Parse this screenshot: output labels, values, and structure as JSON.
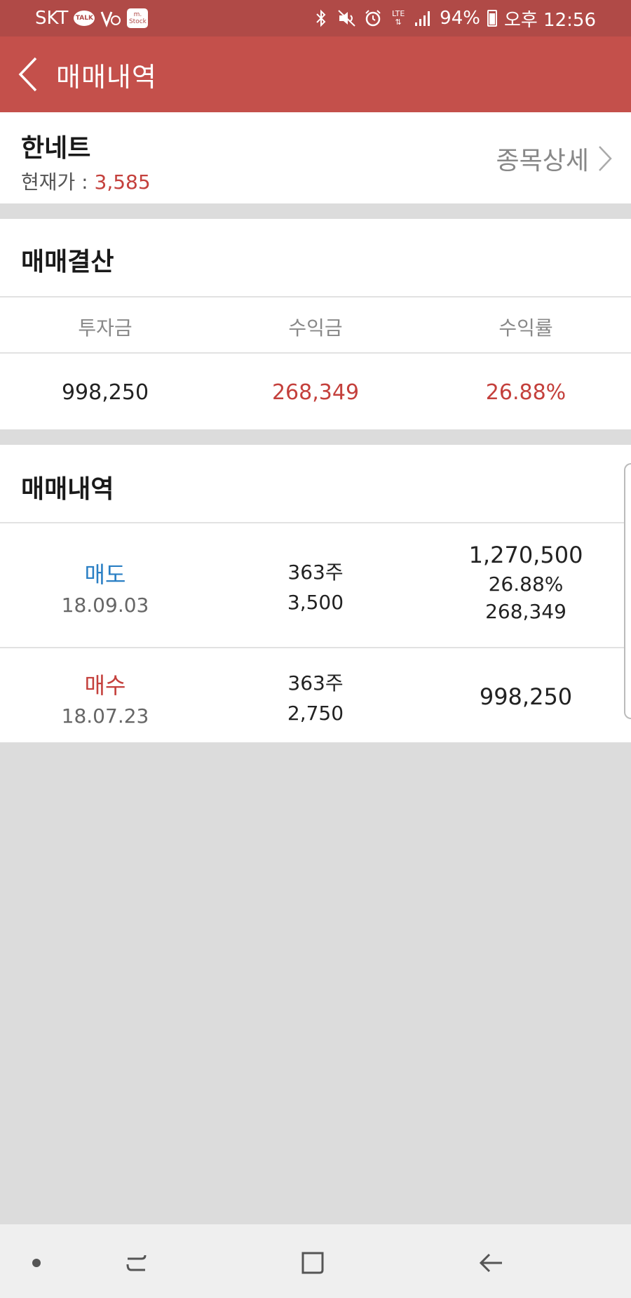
{
  "status_bar": {
    "carrier": "SKT",
    "talk_badge": "TALK",
    "mstock_badge": "m.\nStock",
    "network": "LTE",
    "battery": "94%",
    "time": "오후 12:56"
  },
  "app_bar": {
    "title": "매매내역"
  },
  "stock": {
    "name": "한네트",
    "price_label": "현재가 : ",
    "price_value": "3,585",
    "detail_link": "종목상세"
  },
  "settlement": {
    "title": "매매결산",
    "headers": [
      "투자금",
      "수익금",
      "수익률"
    ],
    "values": [
      "998,250",
      "268,349",
      "26.88%"
    ]
  },
  "history": {
    "title": "매매내역",
    "rows": [
      {
        "type": "매도",
        "date": "18.09.03",
        "shares": "363주",
        "price": "3,500",
        "amount": "1,270,500",
        "return_rate": "26.88%",
        "profit": "268,349"
      },
      {
        "type": "매수",
        "date": "18.07.23",
        "shares": "363주",
        "price": "2,750",
        "amount": "998,250"
      }
    ]
  },
  "colors": {
    "header_red": "#c4504b",
    "status_red": "#b04a47",
    "gain_red": "#c4403c",
    "sell_blue": "#2a7fc4"
  }
}
